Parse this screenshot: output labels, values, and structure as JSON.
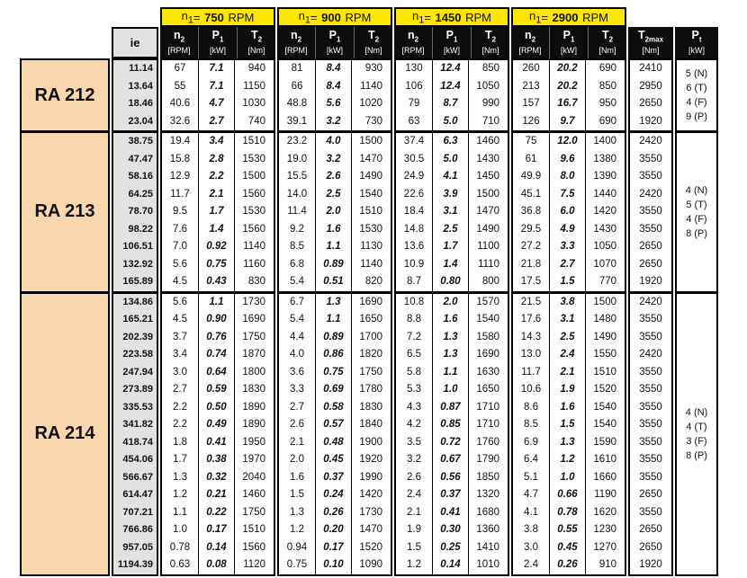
{
  "colors": {
    "header_yellow": "#ffe600",
    "model_peach": "#f9d7ad",
    "ratio_gray": "#e2e2e2",
    "header_black": "#0d0d0d"
  },
  "table": {
    "ie_header": "ie",
    "speed_groups": [
      {
        "sym": "n",
        "sub": "1",
        "eq": "= ",
        "speed": "750",
        "unit": " RPM"
      },
      {
        "sym": "n",
        "sub": "1",
        "eq": "= ",
        "speed": "900",
        "unit": " RPM"
      },
      {
        "sym": "n",
        "sub": "1",
        "eq": "= ",
        "speed": "1450",
        "unit": " RPM"
      },
      {
        "sym": "n",
        "sub": "1",
        "eq": "= ",
        "speed": "2900",
        "unit": " RPM"
      }
    ],
    "sub_columns": [
      {
        "sym": "n",
        "sub": "2",
        "unit": "[RPM]"
      },
      {
        "sym": "P",
        "sub": "1",
        "unit": "[kW]"
      },
      {
        "sym": "T",
        "sub": "2",
        "unit": "[Nm]"
      }
    ],
    "t2max_header": {
      "sym": "T",
      "sub": "2max",
      "unit": "[Nm]"
    },
    "pt_header": {
      "sym": "P",
      "sub": "t",
      "unit": "[kW]"
    },
    "sections": [
      {
        "model": "RA 212",
        "pt_ratings": [
          "5 (N)",
          "6 (T)",
          "4 (F)",
          "9 (P)"
        ],
        "rows": [
          {
            "ie": "11.14",
            "cells": [
              "67",
              "7.1",
              "940",
              "81",
              "8.4",
              "930",
              "130",
              "12.4",
              "850",
              "260",
              "20.2",
              "690"
            ],
            "t2max": "2410"
          },
          {
            "ie": "13.64",
            "cells": [
              "55",
              "7.1",
              "1150",
              "66",
              "8.4",
              "1140",
              "106",
              "12.4",
              "1050",
              "213",
              "20.2",
              "850"
            ],
            "t2max": "2950"
          },
          {
            "ie": "18.46",
            "cells": [
              "40.6",
              "4.7",
              "1030",
              "48.8",
              "5.6",
              "1020",
              "79",
              "8.7",
              "990",
              "157",
              "16.7",
              "950"
            ],
            "t2max": "2650"
          },
          {
            "ie": "23.04",
            "cells": [
              "32.6",
              "2.7",
              "740",
              "39.1",
              "3.2",
              "730",
              "63",
              "5.0",
              "710",
              "126",
              "9.7",
              "690"
            ],
            "t2max": "1920"
          }
        ]
      },
      {
        "model": "RA 213",
        "pt_ratings": [
          "4 (N)",
          "5 (T)",
          "4 (F)",
          "8 (P)"
        ],
        "rows": [
          {
            "ie": "38.75",
            "cells": [
              "19.4",
              "3.4",
              "1510",
              "23.2",
              "4.0",
              "1500",
              "37.4",
              "6.3",
              "1460",
              "75",
              "12.0",
              "1400"
            ],
            "t2max": "2420"
          },
          {
            "ie": "47.47",
            "cells": [
              "15.8",
              "2.8",
              "1530",
              "19.0",
              "3.2",
              "1470",
              "30.5",
              "5.0",
              "1430",
              "61",
              "9.6",
              "1380"
            ],
            "t2max": "3550"
          },
          {
            "ie": "58.16",
            "cells": [
              "12.9",
              "2.2",
              "1500",
              "15.5",
              "2.6",
              "1490",
              "24.9",
              "4.1",
              "1450",
              "49.9",
              "8.0",
              "1390"
            ],
            "t2max": "3550"
          },
          {
            "ie": "64.25",
            "cells": [
              "11.7",
              "2.1",
              "1560",
              "14.0",
              "2.5",
              "1540",
              "22.6",
              "3.9",
              "1500",
              "45.1",
              "7.5",
              "1440"
            ],
            "t2max": "2420"
          },
          {
            "ie": "78.70",
            "cells": [
              "9.5",
              "1.7",
              "1530",
              "11.4",
              "2.0",
              "1510",
              "18.4",
              "3.1",
              "1470",
              "36.8",
              "6.0",
              "1420"
            ],
            "t2max": "3550"
          },
          {
            "ie": "98.22",
            "cells": [
              "7.6",
              "1.4",
              "1560",
              "9.2",
              "1.6",
              "1530",
              "14.8",
              "2.5",
              "1490",
              "29.5",
              "4.9",
              "1430"
            ],
            "t2max": "3550"
          },
          {
            "ie": "106.51",
            "cells": [
              "7.0",
              "0.92",
              "1140",
              "8.5",
              "1.1",
              "1130",
              "13.6",
              "1.7",
              "1100",
              "27.2",
              "3.3",
              "1050"
            ],
            "t2max": "2650"
          },
          {
            "ie": "132.92",
            "cells": [
              "5.6",
              "0.75",
              "1160",
              "6.8",
              "0.89",
              "1140",
              "10.9",
              "1.4",
              "1110",
              "21.8",
              "2.7",
              "1070"
            ],
            "t2max": "2650"
          },
          {
            "ie": "165.89",
            "cells": [
              "4.5",
              "0.43",
              "830",
              "5.4",
              "0.51",
              "820",
              "8.7",
              "0.80",
              "800",
              "17.5",
              "1.5",
              "770"
            ],
            "t2max": "1920"
          }
        ]
      },
      {
        "model": "RA 214",
        "pt_ratings": [
          "4 (N)",
          "4 (T)",
          "3 (F)",
          "8 (P)"
        ],
        "rows": [
          {
            "ie": "134.86",
            "cells": [
              "5.6",
              "1.1",
              "1730",
              "6.7",
              "1.3",
              "1690",
              "10.8",
              "2.0",
              "1570",
              "21.5",
              "3.8",
              "1500"
            ],
            "t2max": "2420"
          },
          {
            "ie": "165.21",
            "cells": [
              "4.5",
              "0.90",
              "1690",
              "5.4",
              "1.1",
              "1650",
              "8.8",
              "1.6",
              "1540",
              "17.6",
              "3.1",
              "1480"
            ],
            "t2max": "3550"
          },
          {
            "ie": "202.39",
            "cells": [
              "3.7",
              "0.76",
              "1750",
              "4.4",
              "0.89",
              "1700",
              "7.2",
              "1.3",
              "1580",
              "14.3",
              "2.5",
              "1490"
            ],
            "t2max": "3550"
          },
          {
            "ie": "223.58",
            "cells": [
              "3.4",
              "0.74",
              "1870",
              "4.0",
              "0.86",
              "1820",
              "6.5",
              "1.3",
              "1690",
              "13.0",
              "2.4",
              "1550"
            ],
            "t2max": "2420"
          },
          {
            "ie": "247.94",
            "cells": [
              "3.0",
              "0.64",
              "1800",
              "3.6",
              "0.75",
              "1750",
              "5.8",
              "1.1",
              "1630",
              "11.7",
              "2.1",
              "1510"
            ],
            "t2max": "3550"
          },
          {
            "ie": "273.89",
            "cells": [
              "2.7",
              "0.59",
              "1830",
              "3.3",
              "0.69",
              "1780",
              "5.3",
              "1.0",
              "1650",
              "10.6",
              "1.9",
              "1520"
            ],
            "t2max": "3550"
          },
          {
            "ie": "335.53",
            "cells": [
              "2.2",
              "0.50",
              "1890",
              "2.7",
              "0.58",
              "1830",
              "4.3",
              "0.87",
              "1710",
              "8.6",
              "1.6",
              "1540"
            ],
            "t2max": "3550"
          },
          {
            "ie": "341.82",
            "cells": [
              "2.2",
              "0.49",
              "1890",
              "2.6",
              "0.57",
              "1840",
              "4.2",
              "0.85",
              "1710",
              "8.5",
              "1.5",
              "1540"
            ],
            "t2max": "3550"
          },
          {
            "ie": "418.74",
            "cells": [
              "1.8",
              "0.41",
              "1950",
              "2.1",
              "0.48",
              "1900",
              "3.5",
              "0.72",
              "1760",
              "6.9",
              "1.3",
              "1590"
            ],
            "t2max": "3550"
          },
          {
            "ie": "454.06",
            "cells": [
              "1.7",
              "0.38",
              "1970",
              "2.0",
              "0.45",
              "1920",
              "3.2",
              "0.67",
              "1790",
              "6.4",
              "1.2",
              "1610"
            ],
            "t2max": "3550"
          },
          {
            "ie": "566.67",
            "cells": [
              "1.3",
              "0.32",
              "2040",
              "1.6",
              "0.37",
              "1990",
              "2.6",
              "0.56",
              "1850",
              "5.1",
              "1.0",
              "1660"
            ],
            "t2max": "3550"
          },
          {
            "ie": "614.47",
            "cells": [
              "1.2",
              "0.21",
              "1460",
              "1.5",
              "0.24",
              "1420",
              "2.4",
              "0.37",
              "1320",
              "4.7",
              "0.66",
              "1190"
            ],
            "t2max": "2650"
          },
          {
            "ie": "707.21",
            "cells": [
              "1.1",
              "0.22",
              "1750",
              "1.3",
              "0.26",
              "1730",
              "2.1",
              "0.41",
              "1680",
              "4.1",
              "0.78",
              "1620"
            ],
            "t2max": "3550"
          },
          {
            "ie": "766.86",
            "cells": [
              "1.0",
              "0.17",
              "1510",
              "1.2",
              "0.20",
              "1470",
              "1.9",
              "0.30",
              "1360",
              "3.8",
              "0.55",
              "1230"
            ],
            "t2max": "2650"
          },
          {
            "ie": "957.05",
            "cells": [
              "0.78",
              "0.14",
              "1560",
              "0.94",
              "0.17",
              "1520",
              "1.5",
              "0.25",
              "1410",
              "3.0",
              "0.45",
              "1270"
            ],
            "t2max": "2650"
          },
          {
            "ie": "1194.39",
            "cells": [
              "0.63",
              "0.08",
              "1120",
              "0.75",
              "0.10",
              "1090",
              "1.2",
              "0.14",
              "1010",
              "2.4",
              "0.26",
              "910"
            ],
            "t2max": "1920"
          }
        ]
      }
    ]
  }
}
